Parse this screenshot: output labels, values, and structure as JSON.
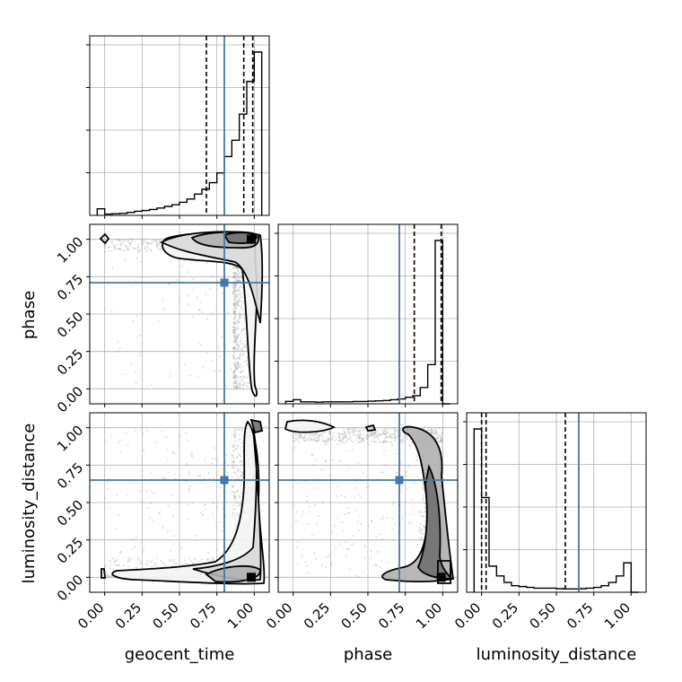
{
  "chart_data": {
    "type": "corner",
    "parameters": [
      "geocent_time",
      "phase",
      "luminosity_distance"
    ],
    "axis_range": [
      -0.1,
      1.1
    ],
    "ticks": [
      0.0,
      0.25,
      0.5,
      0.75,
      1.0
    ],
    "tick_labels": [
      "0.00",
      "0.25",
      "0.50",
      "0.75",
      "1.00"
    ],
    "grid": true,
    "colors": {
      "truth": "#4477aa",
      "contour": "#000000",
      "points": "#999999"
    },
    "truths": {
      "geocent_time": 0.8,
      "phase": 0.71,
      "luminosity_distance": 0.65
    },
    "histograms": [
      {
        "param": "geocent_time",
        "bins": [
          -0.05,
          0.0,
          0.05,
          0.1,
          0.15,
          0.2,
          0.25,
          0.3,
          0.35,
          0.4,
          0.45,
          0.5,
          0.55,
          0.6,
          0.65,
          0.7,
          0.75,
          0.8,
          0.85,
          0.9,
          0.95,
          1.0,
          1.05
        ],
        "values": [
          0.04,
          0.008,
          0.01,
          0.012,
          0.018,
          0.025,
          0.03,
          0.036,
          0.045,
          0.055,
          0.065,
          0.08,
          0.1,
          0.13,
          0.16,
          0.2,
          0.26,
          0.36,
          0.46,
          0.62,
          0.82,
          1.0
        ],
        "quantiles": [
          0.68,
          0.93,
          0.99
        ]
      },
      {
        "param": "phase",
        "bins": [
          -0.05,
          0.0,
          0.05,
          0.1,
          0.15,
          0.2,
          0.25,
          0.3,
          0.35,
          0.4,
          0.45,
          0.5,
          0.55,
          0.6,
          0.65,
          0.7,
          0.75,
          0.8,
          0.85,
          0.9,
          0.95,
          1.0,
          1.05
        ],
        "values": [
          0.015,
          0.025,
          0.012,
          0.012,
          0.01,
          0.012,
          0.012,
          0.012,
          0.012,
          0.014,
          0.014,
          0.016,
          0.018,
          0.02,
          0.025,
          0.03,
          0.04,
          0.05,
          0.1,
          0.24,
          1.0,
          0.0
        ],
        "quantiles": [
          0.81,
          0.99
        ]
      },
      {
        "param": "luminosity_distance",
        "bins": [
          -0.05,
          0.0,
          0.05,
          0.1,
          0.15,
          0.2,
          0.25,
          0.3,
          0.35,
          0.4,
          0.45,
          0.5,
          0.55,
          0.6,
          0.65,
          0.7,
          0.75,
          0.8,
          0.85,
          0.9,
          0.95,
          1.0,
          1.05
        ],
        "values": [
          1.0,
          0.58,
          0.16,
          0.1,
          0.06,
          0.04,
          0.035,
          0.03,
          0.025,
          0.025,
          0.025,
          0.022,
          0.02,
          0.02,
          0.022,
          0.025,
          0.03,
          0.04,
          0.06,
          0.1,
          0.18,
          0.0
        ],
        "quantiles": [
          0.0,
          0.03,
          0.56
        ]
      }
    ],
    "scatter_seed": 7
  }
}
